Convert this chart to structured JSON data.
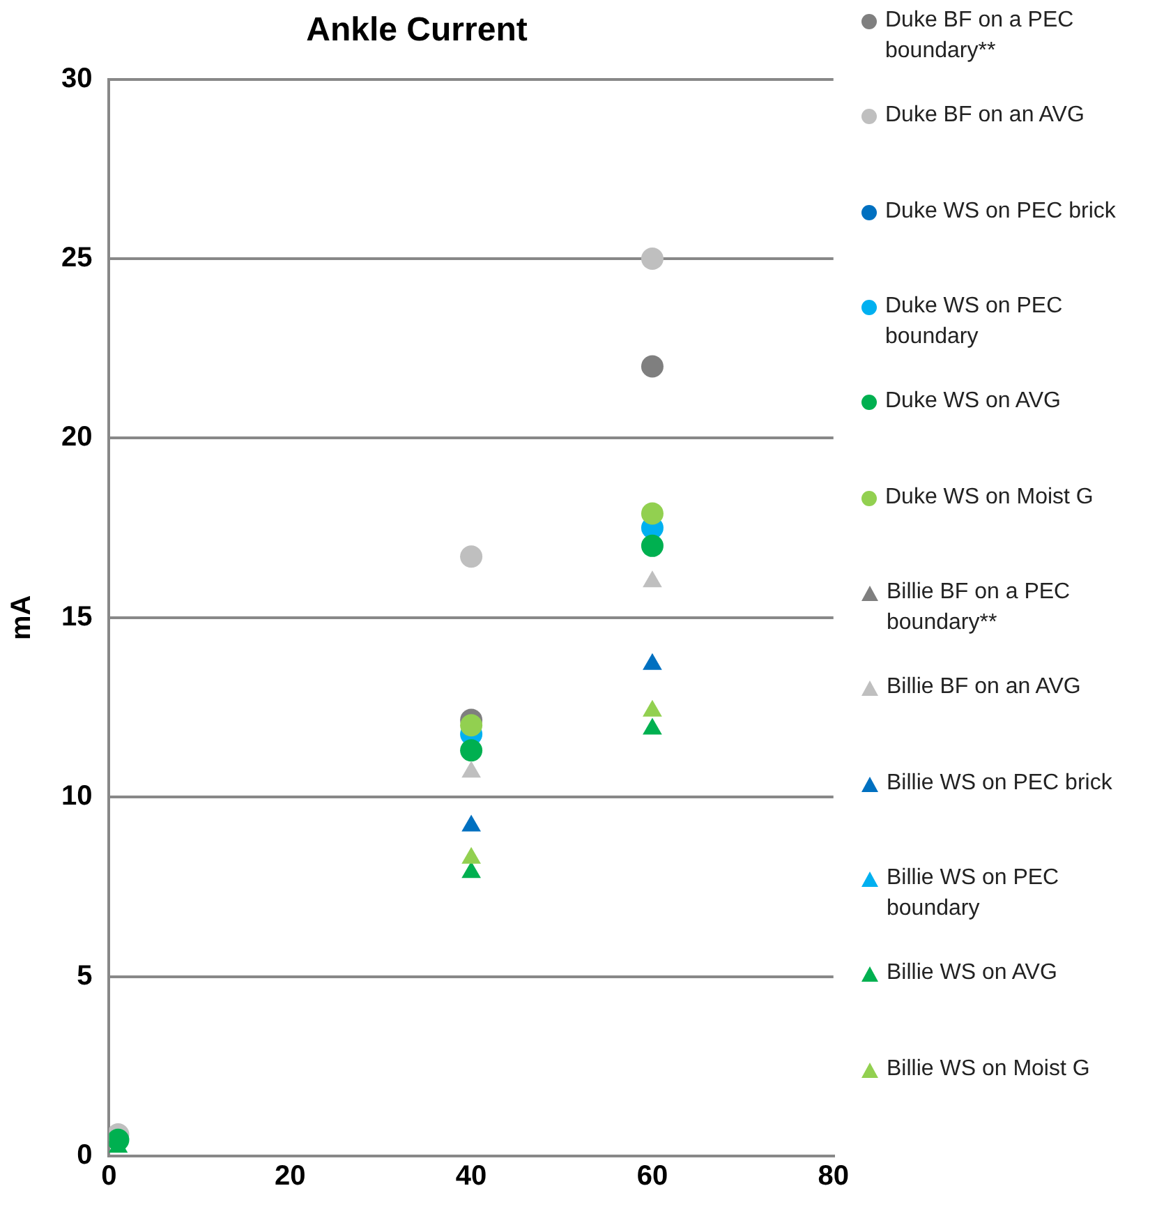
{
  "chart_data": {
    "type": "scatter",
    "title": "Ankle Current",
    "ylabel": "mA",
    "x": [
      1,
      40,
      60
    ],
    "xlim": [
      0,
      80
    ],
    "xticks": [
      0,
      20,
      40,
      60,
      80
    ],
    "ylim": [
      0,
      30
    ],
    "yticks": [
      0,
      5,
      10,
      15,
      20,
      25,
      30
    ],
    "grid": "y",
    "legend": "right",
    "series": [
      {
        "name": "Duke BF on a PEC boundary**",
        "color": "#7f7f7f",
        "marker": "circle",
        "values": [
          null,
          12.15,
          22.0
        ]
      },
      {
        "name": "Duke BF on an AVG",
        "color": "#bfbfbf",
        "marker": "circle",
        "values": [
          0.6,
          16.7,
          25.0
        ]
      },
      {
        "name": "Duke WS on PEC brick",
        "color": "#0070c0",
        "marker": "circle",
        "values": [
          null,
          null,
          null
        ]
      },
      {
        "name": "Duke WS on PEC boundary",
        "color": "#00b0f0",
        "marker": "circle",
        "values": [
          null,
          11.75,
          17.5
        ]
      },
      {
        "name": "Duke WS on AVG",
        "color": "#00b050",
        "marker": "circle",
        "values": [
          0.45,
          11.3,
          17.0
        ]
      },
      {
        "name": "Duke WS on Moist G",
        "color": "#92d050",
        "marker": "circle",
        "values": [
          null,
          12.0,
          17.9
        ]
      },
      {
        "name": "Billie BF on a PEC boundary**",
        "color": "#7f7f7f",
        "marker": "triangle",
        "values": [
          null,
          null,
          null
        ]
      },
      {
        "name": "Billie BF on an AVG",
        "color": "#bfbfbf",
        "marker": "triangle",
        "values": [
          null,
          10.7,
          16.0
        ]
      },
      {
        "name": "Billie WS on PEC brick",
        "color": "#0070c0",
        "marker": "triangle",
        "values": [
          null,
          9.2,
          13.7
        ]
      },
      {
        "name": "Billie WS on PEC boundary",
        "color": "#00b0f0",
        "marker": "triangle",
        "values": [
          null,
          null,
          null
        ]
      },
      {
        "name": "Billie WS on AVG",
        "color": "#00b050",
        "marker": "triangle",
        "values": [
          0.25,
          7.9,
          11.9
        ]
      },
      {
        "name": "Billie WS on Moist G",
        "color": "#92d050",
        "marker": "triangle",
        "values": [
          null,
          8.3,
          12.4
        ]
      }
    ]
  }
}
